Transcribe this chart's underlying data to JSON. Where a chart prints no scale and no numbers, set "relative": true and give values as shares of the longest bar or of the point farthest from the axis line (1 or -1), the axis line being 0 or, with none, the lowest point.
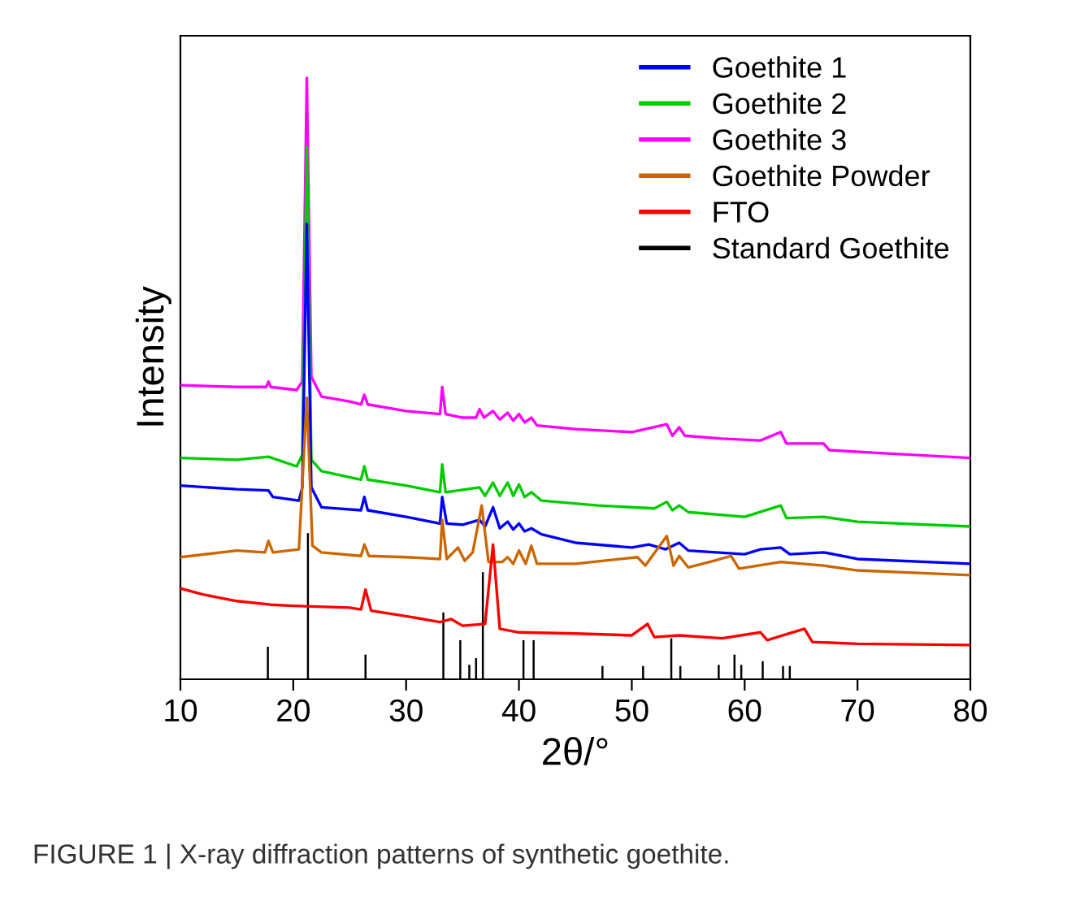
{
  "chart_data": {
    "type": "line",
    "relative": true,
    "xlabel": "2θ/°",
    "ylabel": "Intensity",
    "xlim": [
      10,
      80
    ],
    "xticks": [
      10,
      20,
      30,
      40,
      50,
      60,
      70,
      80
    ],
    "legend": "top right",
    "grid": false,
    "annotations": [
      "FIGURE 1 | X-ray diffraction patterns of synthetic goethite."
    ],
    "series": [
      {
        "name": "Goethite 1",
        "color": "#0000ff",
        "x": [
          10,
          15,
          17.8,
          18.2,
          20.5,
          20.8,
          21.2,
          21.6,
          22.5,
          26.0,
          26.3,
          26.6,
          30,
          33.0,
          33.2,
          33.6,
          35,
          36.5,
          37.0,
          37.7,
          38.3,
          39.0,
          39.5,
          40.0,
          40.5,
          41.1,
          42,
          45,
          50,
          51.5,
          53,
          54.2,
          55,
          60,
          61.4,
          63.2,
          64,
          67,
          70,
          80
        ],
        "values": [
          0.322,
          0.316,
          0.314,
          0.303,
          0.297,
          0.319,
          0.757,
          0.319,
          0.286,
          0.281,
          0.303,
          0.281,
          0.27,
          0.259,
          0.303,
          0.259,
          0.257,
          0.265,
          0.254,
          0.286,
          0.251,
          0.262,
          0.249,
          0.259,
          0.246,
          0.251,
          0.241,
          0.227,
          0.219,
          0.224,
          0.216,
          0.227,
          0.214,
          0.208,
          0.216,
          0.219,
          0.208,
          0.211,
          0.2,
          0.192
        ]
      },
      {
        "name": "Goethite 2",
        "color": "#00cc00",
        "x": [
          10,
          15,
          17.8,
          20.3,
          20.8,
          21.2,
          21.6,
          22.5,
          26.0,
          26.3,
          26.6,
          30,
          33.0,
          33.2,
          33.5,
          36.5,
          37.0,
          37.7,
          38.3,
          39.0,
          39.5,
          40.0,
          40.5,
          41.1,
          42,
          47,
          52,
          53.1,
          53.6,
          54.2,
          55,
          60,
          63.2,
          63.7,
          67.0,
          70,
          80
        ],
        "values": [
          0.368,
          0.365,
          0.37,
          0.354,
          0.373,
          0.886,
          0.365,
          0.346,
          0.332,
          0.354,
          0.332,
          0.322,
          0.311,
          0.357,
          0.311,
          0.319,
          0.305,
          0.327,
          0.305,
          0.327,
          0.305,
          0.324,
          0.303,
          0.311,
          0.297,
          0.289,
          0.284,
          0.295,
          0.281,
          0.289,
          0.278,
          0.27,
          0.289,
          0.268,
          0.27,
          0.262,
          0.254
        ]
      },
      {
        "name": "Goethite 3",
        "color": "#ff00ff",
        "x": [
          10,
          15,
          17.6,
          17.8,
          18.0,
          20.3,
          20.8,
          21.2,
          21.6,
          22.5,
          25,
          26.0,
          26.3,
          26.6,
          30,
          33.0,
          33.2,
          33.5,
          35,
          36.2,
          36.5,
          36.9,
          37.7,
          38.3,
          39.0,
          39.5,
          40.0,
          40.5,
          41.1,
          41.6,
          45,
          50,
          53.1,
          53.6,
          54.2,
          54.7,
          58,
          61.4,
          63.2,
          63.7,
          67.0,
          67.5,
          72,
          80
        ],
        "values": [
          0.489,
          0.486,
          0.486,
          0.495,
          0.486,
          0.481,
          0.495,
          1.0,
          0.503,
          0.47,
          0.462,
          0.457,
          0.473,
          0.457,
          0.446,
          0.441,
          0.486,
          0.441,
          0.435,
          0.435,
          0.449,
          0.435,
          0.446,
          0.432,
          0.443,
          0.43,
          0.441,
          0.427,
          0.435,
          0.422,
          0.416,
          0.411,
          0.424,
          0.405,
          0.419,
          0.405,
          0.4,
          0.397,
          0.411,
          0.392,
          0.392,
          0.381,
          0.376,
          0.368
        ]
      },
      {
        "name": "Goethite Powder",
        "color": "#cc6600",
        "x": [
          10,
          15,
          17.5,
          17.8,
          18.2,
          20.5,
          21.2,
          21.7,
          22.5,
          26.0,
          26.3,
          26.7,
          30,
          33.0,
          33.2,
          33.6,
          34.6,
          35.2,
          35.9,
          36.7,
          37.3,
          38.5,
          39.0,
          39.5,
          40.0,
          40.6,
          41.1,
          41.6,
          45,
          50.5,
          51.2,
          53.1,
          53.7,
          54.2,
          55,
          57.3,
          58.8,
          59.5,
          63.2,
          67,
          70,
          80
        ],
        "values": [
          0.203,
          0.214,
          0.211,
          0.23,
          0.211,
          0.216,
          0.468,
          0.222,
          0.211,
          0.205,
          0.224,
          0.205,
          0.203,
          0.2,
          0.265,
          0.2,
          0.219,
          0.197,
          0.211,
          0.289,
          0.195,
          0.195,
          0.203,
          0.192,
          0.214,
          0.192,
          0.222,
          0.192,
          0.192,
          0.203,
          0.189,
          0.238,
          0.189,
          0.205,
          0.186,
          0.197,
          0.205,
          0.184,
          0.195,
          0.189,
          0.181,
          0.173
        ]
      },
      {
        "name": "FTO",
        "color": "#ff0000",
        "x": [
          10,
          12,
          15,
          18,
          20,
          25,
          26.0,
          26.4,
          26.9,
          30,
          33,
          34.0,
          35,
          37.0,
          37.7,
          38.3,
          40,
          45,
          50,
          51.4,
          52,
          54.2,
          58,
          61.4,
          62,
          65.3,
          66,
          70,
          80
        ],
        "values": [
          0.151,
          0.141,
          0.13,
          0.124,
          0.122,
          0.119,
          0.116,
          0.149,
          0.114,
          0.105,
          0.095,
          0.1,
          0.089,
          0.092,
          0.224,
          0.084,
          0.078,
          0.076,
          0.073,
          0.092,
          0.07,
          0.073,
          0.068,
          0.078,
          0.065,
          0.084,
          0.062,
          0.059,
          0.057
        ]
      },
      {
        "name": "Standard Goethite",
        "type": "bar",
        "color": "#000000",
        "x": [
          17.75,
          21.3,
          26.4,
          33.3,
          34.8,
          35.6,
          36.2,
          36.8,
          40.4,
          41.3,
          47.4,
          51.0,
          53.5,
          54.3,
          57.7,
          59.1,
          59.7,
          61.6,
          63.4,
          64.0
        ],
        "values": [
          0.054,
          0.243,
          0.041,
          0.111,
          0.065,
          0.024,
          0.035,
          0.178,
          0.065,
          0.065,
          0.022,
          0.022,
          0.068,
          0.022,
          0.024,
          0.041,
          0.024,
          0.03,
          0.022,
          0.022
        ]
      }
    ]
  }
}
